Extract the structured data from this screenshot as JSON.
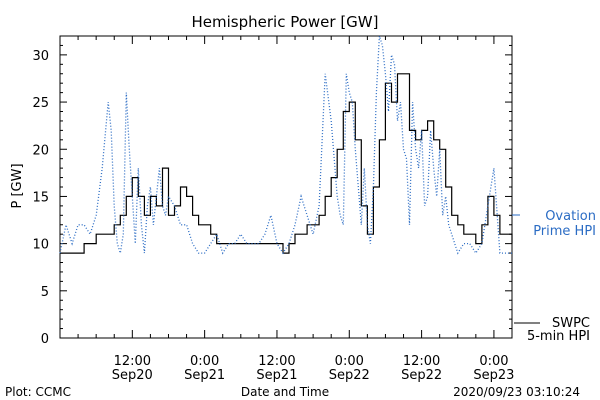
{
  "chart_data": {
    "type": "line",
    "title": "Hemispheric Power [GW]",
    "ylabel": "P [GW]",
    "xlabel": "Date and Time",
    "ylim": [
      0,
      32
    ],
    "yticks": [
      0,
      5,
      10,
      15,
      20,
      25,
      30
    ],
    "xlim_hours": [
      0,
      75
    ],
    "xticks": [
      {
        "hour": 12,
        "time": "12:00",
        "date": "Sep20"
      },
      {
        "hour": 24,
        "time": "0:00",
        "date": "Sep21"
      },
      {
        "hour": 36,
        "time": "12:00",
        "date": "Sep21"
      },
      {
        "hour": 48,
        "time": "0:00",
        "date": "Sep22"
      },
      {
        "hour": 60,
        "time": "12:00",
        "date": "Sep22"
      },
      {
        "hour": 72,
        "time": "0:00",
        "date": "Sep23"
      }
    ],
    "grid": false,
    "series": [
      {
        "name": "SWPC 5-min HPI",
        "style": "solid",
        "color": "#000000",
        "x": [
          0,
          3,
          4,
          5,
          6,
          7,
          8,
          9,
          10,
          11,
          12,
          13,
          14,
          15,
          16,
          17,
          18,
          19,
          20,
          21,
          22,
          23,
          24,
          25,
          26,
          27,
          28,
          29,
          30,
          31,
          32,
          33,
          34,
          35,
          36,
          37,
          38,
          39,
          40,
          41,
          42,
          43,
          44,
          45,
          46,
          47,
          48,
          49,
          50,
          51,
          52,
          53,
          54,
          55,
          56,
          57,
          58,
          59,
          60,
          61,
          62,
          63,
          64,
          65,
          66,
          67,
          68,
          69,
          70,
          71,
          72,
          73,
          74,
          75
        ],
        "y": [
          9,
          9,
          10,
          10,
          11,
          11,
          11,
          12,
          13,
          15,
          17,
          15,
          13,
          15,
          14,
          18,
          13,
          14,
          16,
          15,
          13,
          12,
          12,
          11,
          10,
          10,
          10,
          10,
          10,
          10,
          10,
          10,
          10,
          10,
          10,
          9,
          10,
          11,
          11,
          12,
          12,
          13,
          15,
          17,
          20,
          24,
          25,
          21,
          14,
          11,
          16,
          21,
          27,
          25,
          28,
          28,
          22,
          21,
          22,
          23,
          21,
          20,
          16,
          13,
          12,
          11,
          11,
          10,
          12,
          15,
          13,
          11,
          11,
          10
        ]
      },
      {
        "name": "Ovation Prime HPI",
        "style": "dotted",
        "color": "#2b6cc4",
        "x": [
          0,
          1,
          2,
          3,
          4,
          5,
          6,
          7,
          8,
          8.5,
          9,
          9.5,
          10,
          10.5,
          11,
          11.5,
          12,
          12.5,
          13,
          13.5,
          14,
          14.5,
          15,
          15.5,
          16,
          16.5,
          17,
          17.5,
          18,
          19,
          20,
          21,
          22,
          23,
          24,
          25,
          26,
          27,
          28,
          29,
          30,
          31,
          32,
          33,
          34,
          35,
          36,
          37,
          38,
          39,
          40,
          41,
          42,
          43,
          44,
          45,
          45.5,
          46,
          46.5,
          47,
          47.5,
          48,
          48.5,
          49,
          49.5,
          50,
          50.5,
          51,
          51.5,
          52,
          52.5,
          53,
          53.5,
          54,
          54.5,
          55,
          55.5,
          56,
          56.5,
          57,
          57.5,
          58,
          58.5,
          59,
          59.5,
          60,
          60.5,
          61,
          61.5,
          62,
          62.5,
          63,
          63.5,
          64,
          64.5,
          65,
          66,
          67,
          68,
          69,
          70,
          71,
          72,
          73,
          74,
          75
        ],
        "y": [
          9,
          12,
          10,
          12,
          12,
          11,
          13,
          18,
          25,
          22,
          14,
          10,
          9,
          11,
          26,
          20,
          15,
          10,
          18,
          12,
          9,
          14,
          16,
          12,
          15,
          18,
          14,
          13,
          15,
          14,
          12,
          12,
          10,
          9,
          9,
          10,
          11,
          9,
          10,
          10,
          11,
          10,
          10,
          10,
          11,
          13,
          10,
          9,
          10,
          12,
          15,
          13,
          11,
          14,
          28,
          23,
          19,
          15,
          13,
          12,
          28,
          26,
          25,
          20,
          16,
          12,
          18,
          12,
          10,
          16,
          26,
          32,
          31,
          28,
          24,
          30,
          29,
          23,
          25,
          20,
          19,
          12,
          25,
          20,
          18,
          22,
          14,
          15,
          22,
          18,
          15,
          20,
          13,
          15,
          12,
          11,
          9,
          10,
          10,
          9,
          10,
          14,
          18,
          9,
          9,
          9
        ]
      }
    ],
    "legend": {
      "placement": "right",
      "ovation_line1": "Ovation",
      "ovation_line2": "Prime HPI",
      "swpc_line1": "SWPC",
      "swpc_line2": "5-min HPI"
    }
  },
  "footer": {
    "left": "Plot: CCMC",
    "center": "Date and Time",
    "right": "2020/09/23 03:10:24"
  }
}
